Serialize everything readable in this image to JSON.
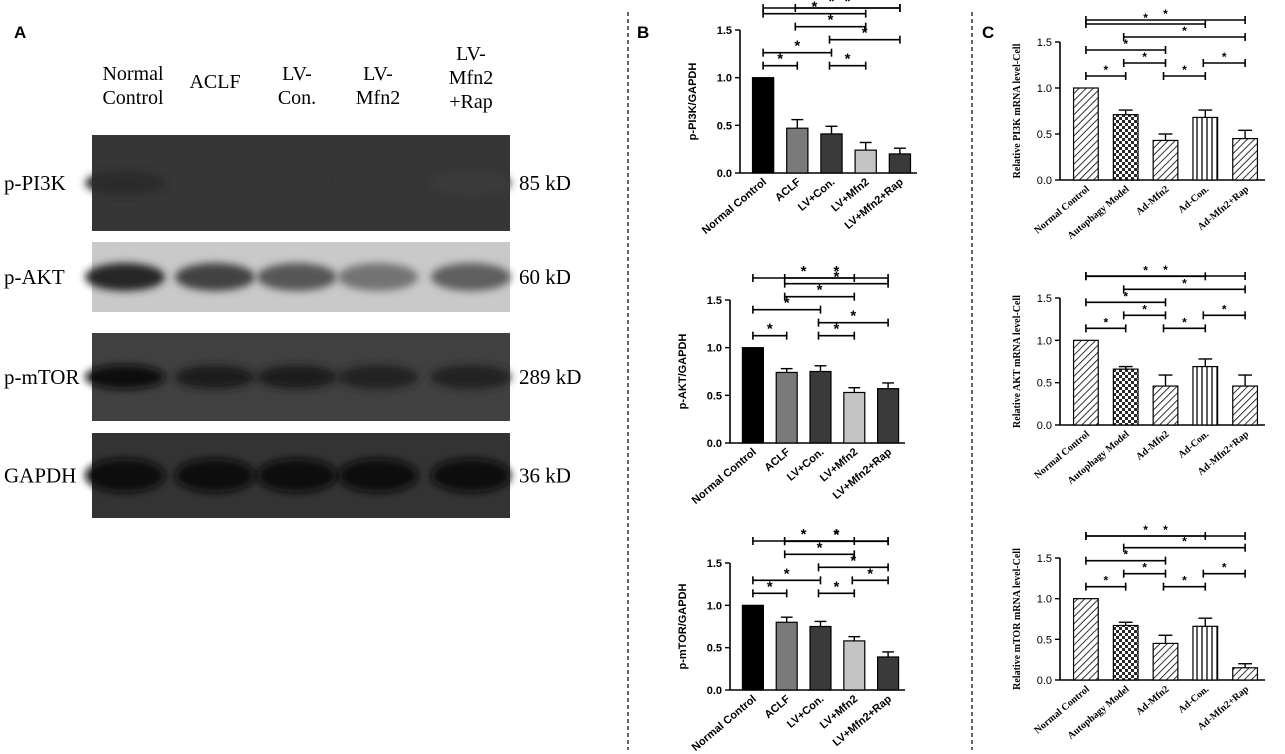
{
  "panels": {
    "A": {
      "letter": "A",
      "lanes": [
        [
          "Normal",
          "Control"
        ],
        [
          "ACLF"
        ],
        [
          "LV-",
          "Con."
        ],
        [
          "LV-",
          "Mfn2"
        ],
        [
          "LV-",
          "Mfn2",
          "+Rap"
        ]
      ],
      "blots": [
        {
          "label": "p-PI3K",
          "kd": "85 kD",
          "intensity": [
            0.35,
            0.2,
            0.2,
            0.2,
            0.08
          ]
        },
        {
          "label": "p-AKT",
          "kd": "60 kD",
          "intensity": [
            0.85,
            0.7,
            0.6,
            0.45,
            0.55
          ]
        },
        {
          "label": "p-mTOR",
          "kd": "289 kD",
          "intensity": [
            0.8,
            0.6,
            0.55,
            0.5,
            0.5
          ]
        },
        {
          "label": "GAPDH",
          "kd": "36 kD",
          "intensity": [
            0.95,
            0.95,
            0.95,
            0.95,
            0.95
          ]
        }
      ]
    },
    "B": {
      "letter": "B"
    },
    "C": {
      "letter": "C"
    }
  },
  "colors": {
    "black": "#000000",
    "dark_gray": "#3a3a3a",
    "mid_gray": "#7a7a7a",
    "light_gray": "#c4c4c4",
    "blot_bg": "#3c3c3c",
    "akt_bg": "#c9c9c9"
  },
  "significance_symbol": "*",
  "chart_data": [
    {
      "type": "bar",
      "panel": "B",
      "ylabel": "p-PI3K/GAPDH",
      "categories": [
        "Normal Control",
        "ACLF",
        "LV+Con.",
        "LV+Mfn2",
        "LV+Mfn2+Rap"
      ],
      "values": [
        1.0,
        0.47,
        0.41,
        0.24,
        0.2
      ],
      "errors": [
        0.0,
        0.09,
        0.08,
        0.08,
        0.06
      ],
      "ylim": [
        0,
        1.5
      ],
      "yticks": [
        "0.0",
        "0.5",
        "1.0",
        "1.5"
      ],
      "fills": [
        "#000000",
        "#7a7a7a",
        "#3a3a3a",
        "#c4c4c4",
        "#3a3a3a"
      ],
      "significance": [
        [
          0,
          2
        ],
        [
          0,
          3
        ],
        [
          0,
          4
        ],
        [
          0,
          1
        ],
        [
          1,
          4
        ],
        [
          2,
          4
        ],
        [
          1,
          3
        ],
        [
          2,
          3
        ]
      ]
    },
    {
      "type": "bar",
      "panel": "B",
      "ylabel": "p-AKT/GAPDH",
      "categories": [
        "Normal Control",
        "ACLF",
        "LV+Con.",
        "LV+Mfn2",
        "LV+Mfn2+Rap"
      ],
      "values": [
        1.0,
        0.74,
        0.75,
        0.53,
        0.57
      ],
      "errors": [
        0.0,
        0.04,
        0.06,
        0.05,
        0.06
      ],
      "ylim": [
        0,
        1.5
      ],
      "yticks": [
        "0.0",
        "0.5",
        "1.0",
        "1.5"
      ],
      "fills": [
        "#000000",
        "#7a7a7a",
        "#3a3a3a",
        "#c4c4c4",
        "#3a3a3a"
      ],
      "significance": [
        [
          1,
          4
        ],
        [
          2,
          4
        ],
        [
          1,
          4
        ],
        [
          0,
          3
        ],
        [
          0,
          2
        ],
        [
          0,
          1
        ],
        [
          1,
          3
        ],
        [
          2,
          3
        ]
      ]
    },
    {
      "type": "bar",
      "panel": "B",
      "ylabel": "p-mTOR/GAPDH",
      "categories": [
        "Normal Control",
        "ACLF",
        "LV+Con.",
        "LV+Mfn2",
        "LV+Mfn2+Rap"
      ],
      "values": [
        1.0,
        0.8,
        0.75,
        0.58,
        0.39
      ],
      "errors": [
        0.0,
        0.06,
        0.06,
        0.05,
        0.06
      ],
      "ylim": [
        0,
        1.5
      ],
      "yticks": [
        "0.0",
        "0.5",
        "1.0",
        "1.5"
      ],
      "fills": [
        "#000000",
        "#7a7a7a",
        "#3a3a3a",
        "#c4c4c4",
        "#3a3a3a"
      ],
      "significance": [
        [
          1,
          4
        ],
        [
          2,
          4
        ],
        [
          1,
          4
        ],
        [
          0,
          3
        ],
        [
          0,
          2
        ],
        [
          0,
          1
        ],
        [
          1,
          3
        ],
        [
          2,
          3
        ],
        [
          3,
          4
        ]
      ]
    },
    {
      "type": "bar",
      "panel": "C",
      "ylabel": "Relative PI3K mRNA level-Cell",
      "categories": [
        "Normal Control",
        "Autophagy Model",
        "Ad-Mfn2",
        "Ad-Con.",
        "Ad-Mfn2+Rap"
      ],
      "values": [
        1.0,
        0.71,
        0.43,
        0.68,
        0.45
      ],
      "errors": [
        0.0,
        0.05,
        0.07,
        0.08,
        0.09
      ],
      "ylim": [
        0,
        1.5
      ],
      "yticks": [
        "0.0",
        "0.5",
        "1.0",
        "1.5"
      ],
      "patterns": [
        "hatch",
        "check",
        "hatch",
        "vline",
        "hatch"
      ],
      "significance": [
        [
          1,
          4
        ],
        [
          0,
          4
        ],
        [
          0,
          3
        ],
        [
          0,
          2
        ],
        [
          2,
          3
        ],
        [
          3,
          4
        ],
        [
          0,
          1
        ],
        [
          1,
          2
        ]
      ]
    },
    {
      "type": "bar",
      "panel": "C",
      "ylabel": "Relative AKT mRNA level-Cell",
      "categories": [
        "Normal Control",
        "Autophagy Model",
        "Ad-Mfn2",
        "Ad-Con.",
        "Ad-Mfn2+Rap"
      ],
      "values": [
        1.0,
        0.66,
        0.46,
        0.69,
        0.46
      ],
      "errors": [
        0.0,
        0.03,
        0.13,
        0.09,
        0.13
      ],
      "ylim": [
        0,
        1.5
      ],
      "yticks": [
        "0.0",
        "0.5",
        "1.0",
        "1.5"
      ],
      "patterns": [
        "hatch",
        "check",
        "hatch",
        "vline",
        "hatch"
      ],
      "significance": [
        [
          1,
          4
        ],
        [
          0,
          4
        ],
        [
          0,
          3
        ],
        [
          0,
          2
        ],
        [
          2,
          3
        ],
        [
          3,
          4
        ],
        [
          0,
          1
        ],
        [
          1,
          2
        ]
      ]
    },
    {
      "type": "bar",
      "panel": "C",
      "ylabel": "Relative mTOR mRNA level-Cell",
      "categories": [
        "Normal Control",
        "Autophagy Model",
        "Ad-Mfn2",
        "Ad-Con.",
        "Ad-Mfn2+Rap"
      ],
      "values": [
        1.0,
        0.67,
        0.45,
        0.66,
        0.15
      ],
      "errors": [
        0.0,
        0.04,
        0.1,
        0.1,
        0.05
      ],
      "ylim": [
        0,
        1.5
      ],
      "yticks": [
        "0.0",
        "0.5",
        "1.0",
        "1.5"
      ],
      "patterns": [
        "hatch",
        "check",
        "hatch",
        "vline",
        "hatch"
      ],
      "significance": [
        [
          1,
          4
        ],
        [
          0,
          4
        ],
        [
          0,
          3
        ],
        [
          0,
          2
        ],
        [
          2,
          3
        ],
        [
          3,
          4
        ],
        [
          0,
          1
        ],
        [
          1,
          2
        ]
      ]
    }
  ]
}
